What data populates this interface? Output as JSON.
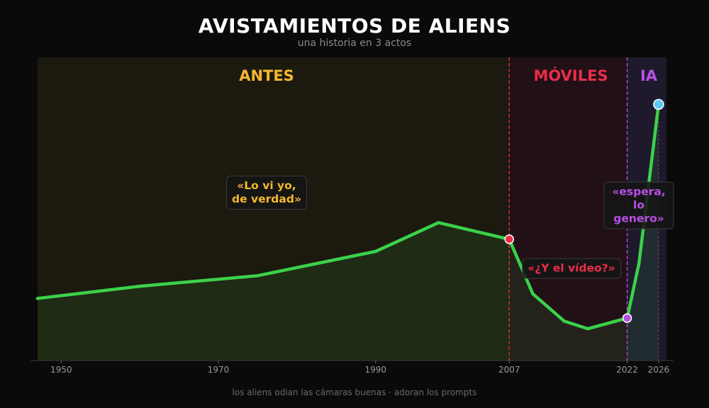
{
  "chart_data": {
    "type": "line",
    "title": "AVISTAMIENTOS DE ALIENS",
    "subtitle": "una historia en 3 actos",
    "xlabel": "",
    "ylabel": "",
    "xlim": [
      1947,
      2027
    ],
    "ylim": [
      0,
      100
    ],
    "x_ticks": [
      "1950",
      "1970",
      "1990",
      "2007",
      "2022",
      "2026"
    ],
    "grid": false,
    "legend": "none",
    "series": [
      {
        "x": [
          1947,
          1960,
          1975,
          1990,
          1998,
          2007,
          2010,
          2014,
          2017,
          2022,
          2023.5,
          2026
        ],
        "values": [
          20.5,
          24.5,
          28,
          36,
          45.5,
          40,
          22,
          13,
          10.5,
          14,
          32,
          84.5
        ]
      }
    ],
    "highlight_points": [
      {
        "x": 2007,
        "y": 40,
        "color": "#ea2d4a"
      },
      {
        "x": 2022,
        "y": 14,
        "color": "#b84fe7"
      },
      {
        "x": 2026,
        "y": 84.5,
        "color": "#5ec8f0"
      }
    ],
    "eras": [
      {
        "label": "ANTES",
        "from": 1947,
        "to": 2007,
        "color": "#f4b731"
      },
      {
        "label": "MÓVILES",
        "from": 2007,
        "to": 2022,
        "color": "#ea2d4a"
      },
      {
        "label": "IA",
        "from": 2022,
        "to": 2027,
        "color": "#b84fe7"
      }
    ],
    "annotations": [
      {
        "text": "«Lo vi yo,\nde verdad»",
        "color": "#f4b731"
      },
      {
        "text": "«¿Y el vídeo?»",
        "color": "#ea2d4a"
      },
      {
        "text": "«espera,\nlo genero»",
        "color": "#b84fe7"
      }
    ],
    "line_color": "#3bd14a",
    "footer": "los aliens odian las cámaras buenas  ·  adoran los prompts"
  }
}
